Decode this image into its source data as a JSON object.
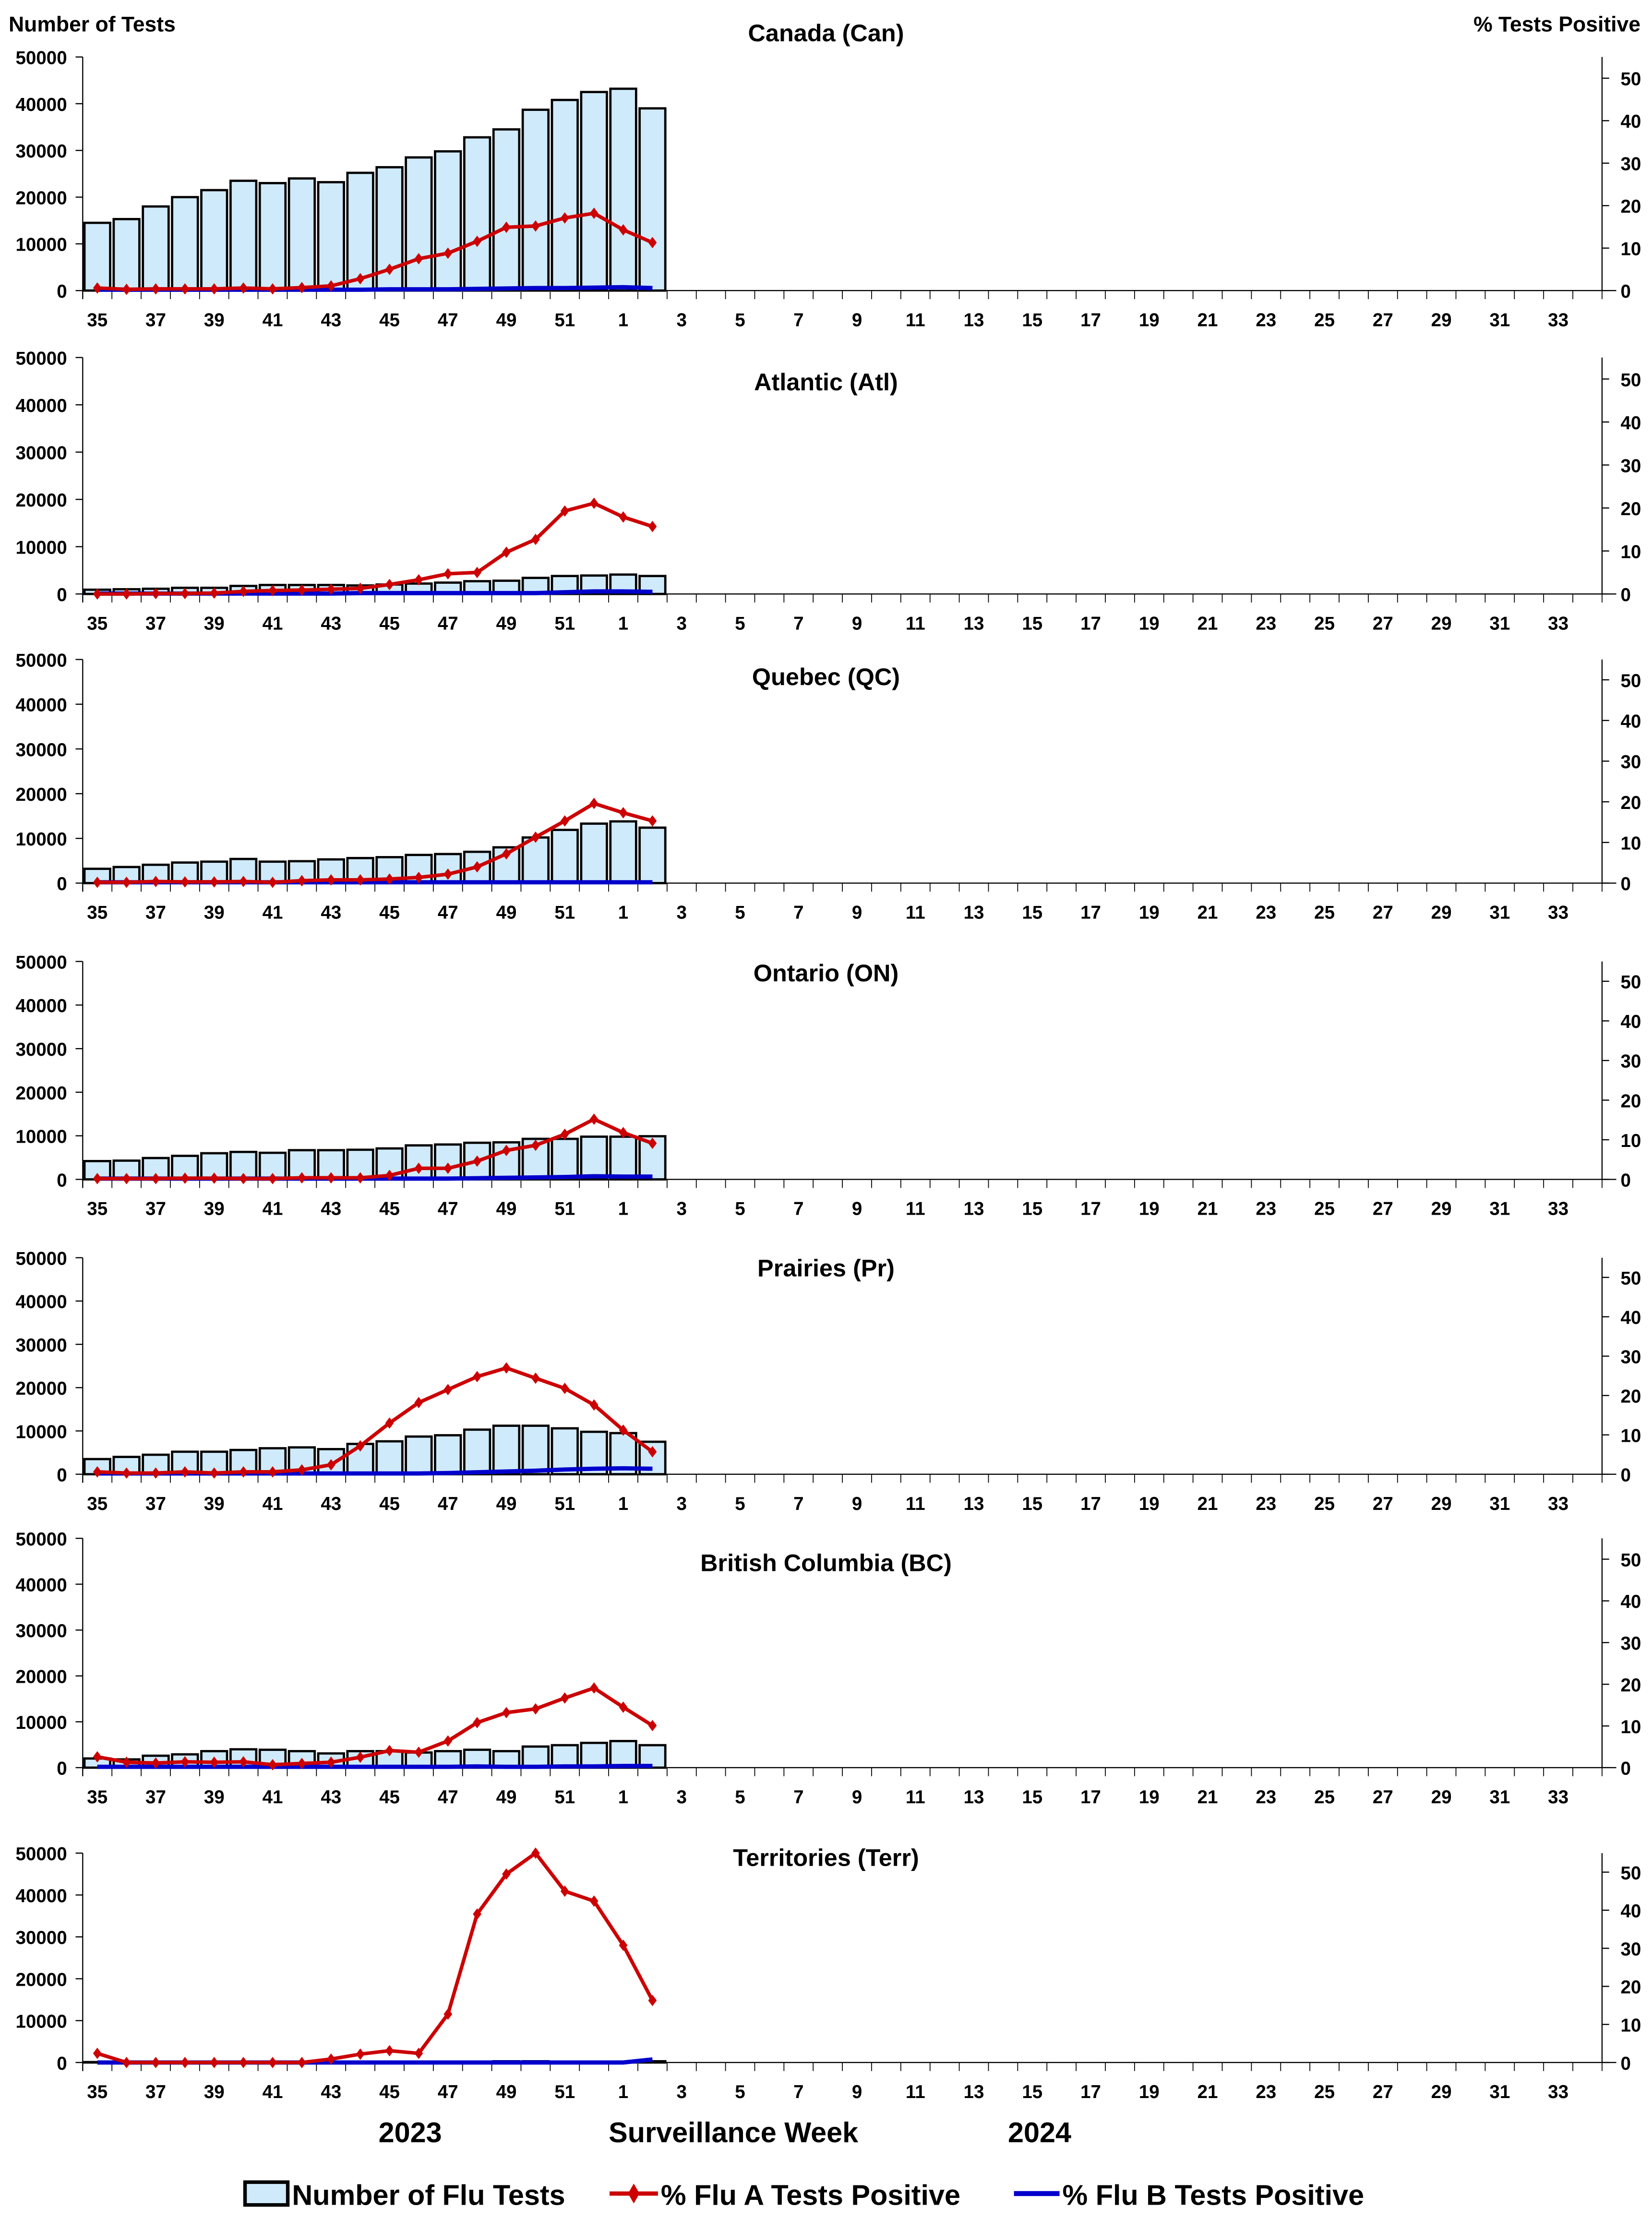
{
  "header": {
    "left_axis_title": "Number of Tests",
    "right_axis_title": "% Tests Positive"
  },
  "footer": {
    "year_left": "2023",
    "xlabel": "Surveillance Week",
    "year_right": "2024"
  },
  "legend": {
    "position": "bottom",
    "items": [
      {
        "label": "Number of Flu Tests",
        "color": "#cfeafa"
      },
      {
        "label": "% Flu A Tests Positive",
        "color": "#cc0000"
      },
      {
        "label": "% Flu B Tests Positive",
        "color": "#0000cc"
      }
    ]
  },
  "chart_data": {
    "type": "bar+line",
    "weeks": [
      35,
      36,
      37,
      38,
      39,
      40,
      41,
      42,
      43,
      44,
      45,
      46,
      47,
      48,
      49,
      50,
      51,
      52,
      1,
      2,
      3,
      4,
      5,
      6,
      7,
      8,
      9,
      10,
      11,
      12,
      13,
      14,
      15,
      16,
      17,
      18,
      19,
      20,
      21,
      22,
      23,
      24,
      25,
      26,
      27,
      28,
      29,
      30,
      31,
      32,
      33,
      34
    ],
    "xtick_labels": [
      "35",
      "37",
      "39",
      "41",
      "43",
      "45",
      "47",
      "49",
      "51",
      "1",
      "3",
      "5",
      "7",
      "9",
      "11",
      "13",
      "15",
      "17",
      "19",
      "21",
      "23",
      "25",
      "27",
      "29",
      "31",
      "33"
    ],
    "left_ylim": [
      0,
      50000
    ],
    "left_yticks": [
      0,
      10000,
      20000,
      30000,
      40000,
      50000
    ],
    "right_ylim": [
      0,
      55
    ],
    "right_yticks": [
      0,
      10,
      20,
      30,
      40,
      50
    ],
    "panels": [
      {
        "title": "Canada (Can)",
        "tests": [
          14500,
          15300,
          18000,
          20000,
          21500,
          23500,
          23000,
          24000,
          23200,
          25200,
          26400,
          28500,
          29800,
          32800,
          34500,
          38700,
          40800,
          42500,
          43200,
          39000
        ],
        "flu_a_pct": [
          0.6,
          0.3,
          0.4,
          0.4,
          0.4,
          0.6,
          0.4,
          0.7,
          1.1,
          2.8,
          5.0,
          7.5,
          8.8,
          11.6,
          14.9,
          15.2,
          17.1,
          18.2,
          14.3,
          11.3
        ],
        "flu_b_pct": [
          0.2,
          0.2,
          0.2,
          0.2,
          0.2,
          0.2,
          0.2,
          0.2,
          0.2,
          0.2,
          0.3,
          0.3,
          0.3,
          0.4,
          0.5,
          0.6,
          0.6,
          0.7,
          0.8,
          0.6
        ]
      },
      {
        "title": "Atlantic (Atl)",
        "tests": [
          900,
          1000,
          1100,
          1300,
          1300,
          1700,
          1900,
          1900,
          1900,
          1800,
          2000,
          2200,
          2400,
          2700,
          2800,
          3400,
          3800,
          3900,
          4100,
          3800
        ],
        "flu_a_pct": [
          0,
          0,
          0.1,
          0.1,
          0.2,
          0.6,
          0.8,
          0.9,
          1.1,
          1.3,
          2.2,
          3.3,
          4.7,
          5.0,
          9.7,
          12.7,
          19.3,
          21.1,
          17.9,
          15.7
        ],
        "flu_b_pct": [
          0.1,
          0.1,
          0.1,
          0.1,
          0.1,
          0.1,
          0.1,
          0.1,
          0.1,
          0.2,
          0.2,
          0.2,
          0.2,
          0.2,
          0.2,
          0.2,
          0.4,
          0.6,
          0.6,
          0.5
        ]
      },
      {
        "title": "Quebec (QC)",
        "tests": [
          3200,
          3600,
          4100,
          4600,
          4800,
          5400,
          4800,
          4900,
          5300,
          5600,
          5800,
          6300,
          6500,
          7000,
          8000,
          10200,
          11900,
          13300,
          13800,
          12400
        ],
        "flu_a_pct": [
          0.2,
          0.2,
          0.4,
          0.3,
          0.3,
          0.4,
          0.2,
          0.6,
          0.8,
          0.8,
          1.0,
          1.4,
          2.2,
          4.0,
          7.2,
          11.3,
          15.3,
          19.6,
          17.3,
          15.3
        ],
        "flu_b_pct": [
          0.2,
          0.2,
          0.2,
          0.2,
          0.2,
          0.2,
          0.2,
          0.2,
          0.2,
          0.2,
          0.2,
          0.2,
          0.2,
          0.2,
          0.2,
          0.2,
          0.2,
          0.2,
          0.2,
          0.2
        ]
      },
      {
        "title": "Ontario (ON)",
        "tests": [
          4200,
          4300,
          4900,
          5400,
          6000,
          6300,
          6100,
          6700,
          6700,
          6800,
          7100,
          7800,
          8000,
          8400,
          8500,
          9300,
          9300,
          9800,
          9800,
          9900
        ],
        "flu_a_pct": [
          0.2,
          0.2,
          0.2,
          0.3,
          0.3,
          0.2,
          0.2,
          0.4,
          0.4,
          0.4,
          1.0,
          2.8,
          2.8,
          4.6,
          7.3,
          8.6,
          11.4,
          15.2,
          11.8,
          9.1
        ],
        "flu_b_pct": [
          0.2,
          0.2,
          0.2,
          0.2,
          0.2,
          0.2,
          0.2,
          0.2,
          0.2,
          0.2,
          0.2,
          0.2,
          0.2,
          0.3,
          0.4,
          0.5,
          0.6,
          0.8,
          0.7,
          0.7
        ]
      },
      {
        "title": "Prairies (Pr)",
        "tests": [
          3500,
          4000,
          4500,
          5200,
          5200,
          5600,
          6000,
          6200,
          5800,
          7000,
          7600,
          8700,
          9000,
          10300,
          11200,
          11200,
          10600,
          9800,
          9500,
          7500
        ],
        "flu_a_pct": [
          0.6,
          0.3,
          0.3,
          0.6,
          0.3,
          0.6,
          0.6,
          1.1,
          2.4,
          7.2,
          13.0,
          18.2,
          21.5,
          24.8,
          27.0,
          24.4,
          21.8,
          17.6,
          11.2,
          5.7
        ],
        "flu_b_pct": [
          0.2,
          0.2,
          0.2,
          0.2,
          0.2,
          0.2,
          0.2,
          0.2,
          0.2,
          0.2,
          0.2,
          0.2,
          0.3,
          0.5,
          0.7,
          0.9,
          1.2,
          1.4,
          1.5,
          1.4
        ]
      },
      {
        "title": "British Columbia (BC)",
        "tests": [
          2000,
          1800,
          2600,
          2900,
          3600,
          4000,
          3900,
          3600,
          3100,
          3600,
          3600,
          3300,
          3600,
          3900,
          3600,
          4600,
          4900,
          5400,
          5800,
          4900
        ],
        "flu_a_pct": [
          2.6,
          1.3,
          1.1,
          1.4,
          1.3,
          1.4,
          0.7,
          1.0,
          1.3,
          2.5,
          4.1,
          3.7,
          6.4,
          10.8,
          13.2,
          14.1,
          16.7,
          19.1,
          14.5,
          10.1
        ],
        "flu_b_pct": [
          0.2,
          0.2,
          0.2,
          0.2,
          0.2,
          0.2,
          0.2,
          0.2,
          0.2,
          0.2,
          0.2,
          0.2,
          0.2,
          0.3,
          0.2,
          0.2,
          0.3,
          0.3,
          0.4,
          0.4
        ]
      },
      {
        "title": "Territories (Terr)",
        "tests": [
          100,
          100,
          100,
          100,
          100,
          100,
          100,
          100,
          100,
          100,
          100,
          100,
          100,
          200,
          300,
          300,
          200,
          200,
          200,
          300
        ],
        "flu_a_pct": [
          2.4,
          0,
          0,
          0,
          0,
          0,
          0,
          0,
          0.9,
          2.2,
          3.1,
          2.4,
          12.7,
          39.0,
          49.5,
          55.0,
          45.0,
          42.4,
          30.8,
          16.3
        ],
        "flu_b_pct": [
          0,
          0,
          0,
          0,
          0,
          0,
          0,
          0,
          0,
          0,
          0,
          0,
          0,
          0,
          0,
          0,
          0,
          0,
          0,
          0.8
        ]
      }
    ]
  }
}
